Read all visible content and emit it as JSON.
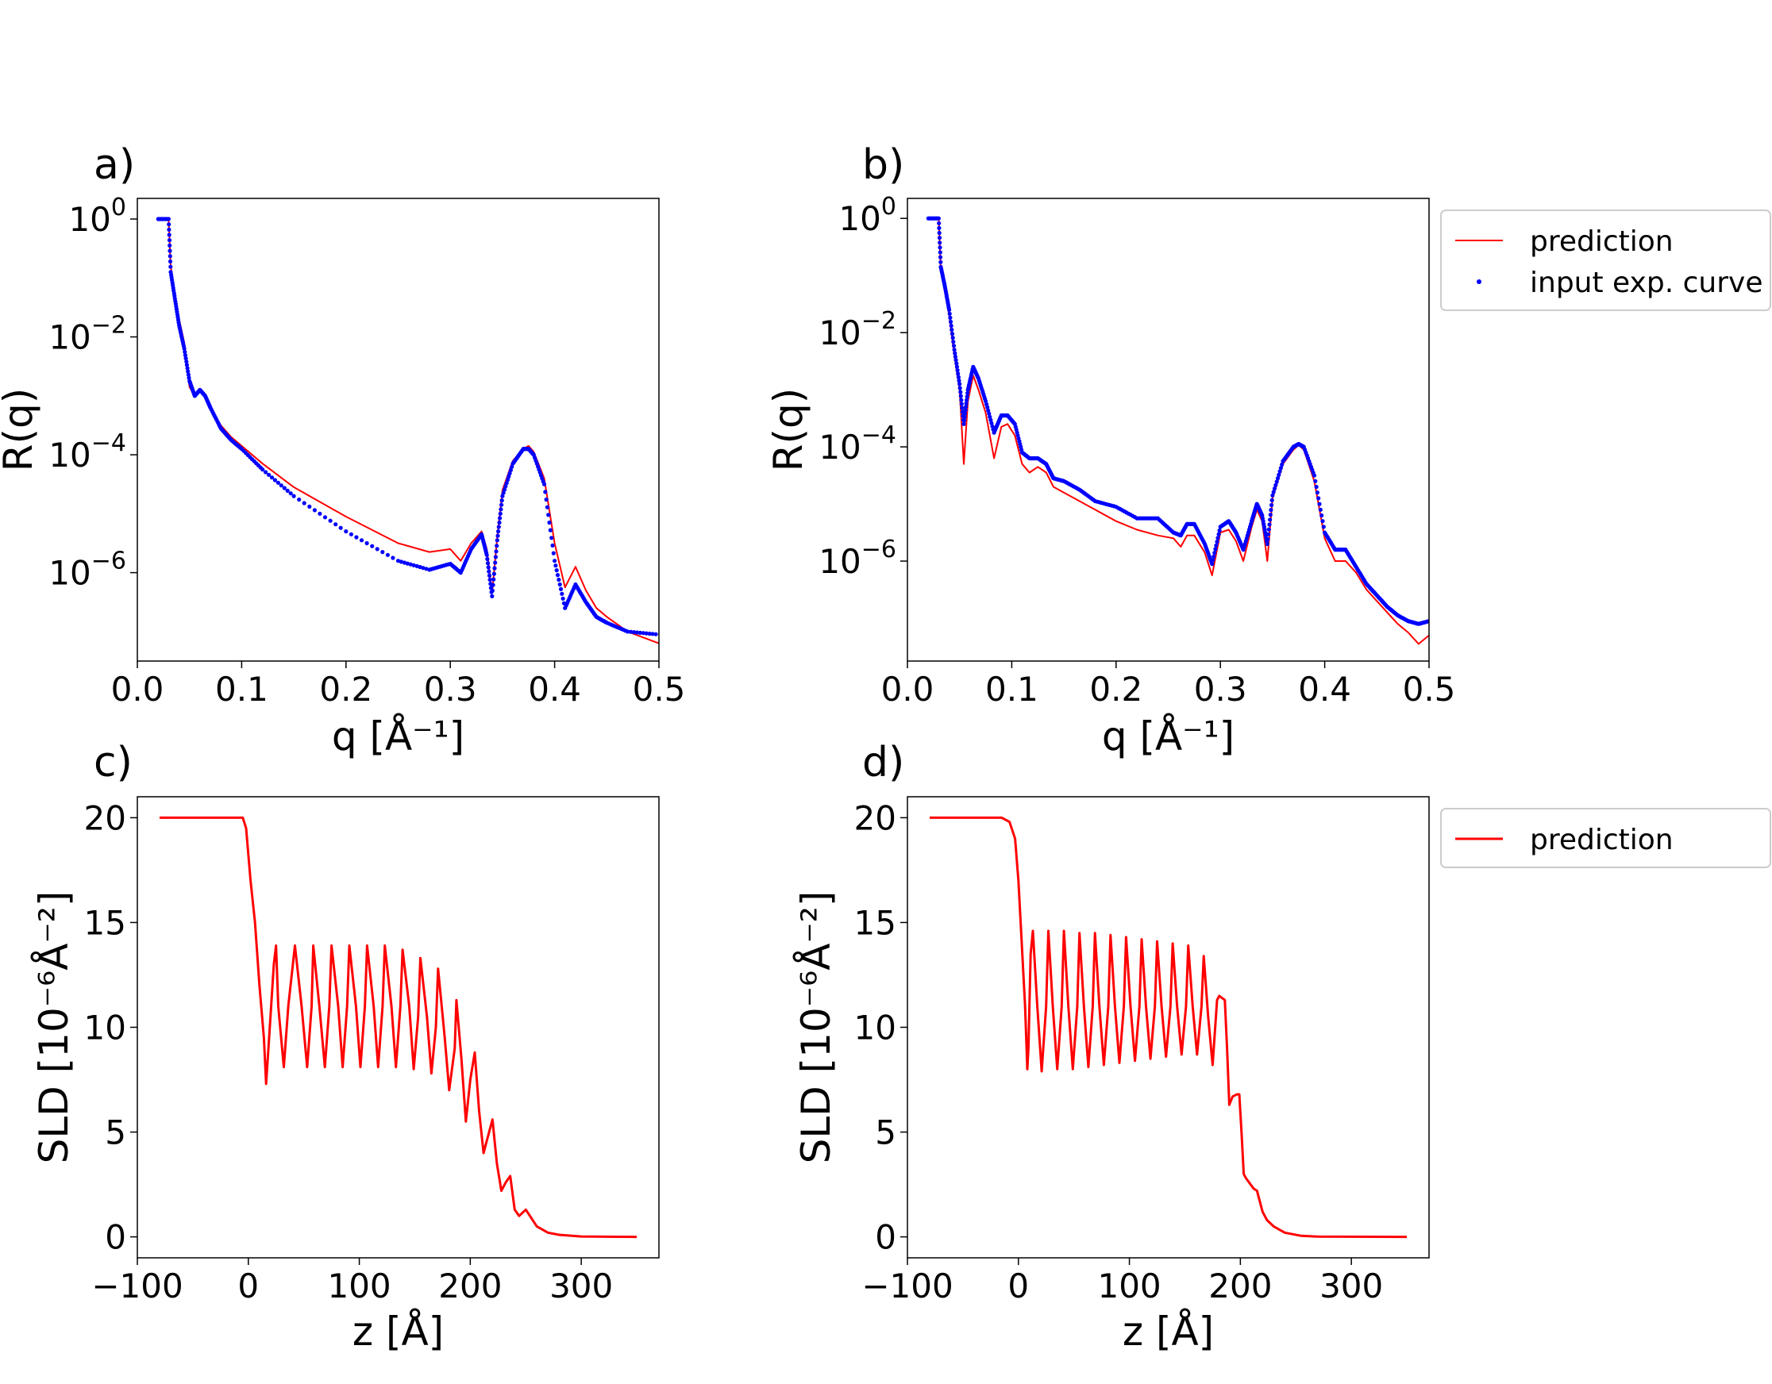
{
  "chart_data": [
    {
      "panel_label": "a)",
      "type": "line",
      "xlabel": "q [Å⁻¹]",
      "ylabel": "R(q)",
      "xlim": [
        0.0,
        0.5
      ],
      "ylim_log10": [
        -7.5,
        0.35
      ],
      "yscale": "log",
      "xticks": [
        "0.0",
        "0.1",
        "0.2",
        "0.3",
        "0.4",
        "0.5"
      ],
      "yticks": [
        {
          "base": "10",
          "exp": "0"
        },
        {
          "base": "10",
          "exp": "−2"
        },
        {
          "base": "10",
          "exp": "−4"
        },
        {
          "base": "10",
          "exp": "−6"
        }
      ],
      "series": [
        {
          "name": "prediction",
          "style": "line",
          "color": "#ff0000",
          "x": [
            0.02,
            0.03,
            0.032,
            0.036,
            0.04,
            0.045,
            0.05,
            0.055,
            0.06,
            0.065,
            0.07,
            0.08,
            0.09,
            0.1,
            0.12,
            0.15,
            0.2,
            0.25,
            0.28,
            0.3,
            0.31,
            0.32,
            0.33,
            0.335,
            0.34,
            0.345,
            0.35,
            0.36,
            0.37,
            0.375,
            0.38,
            0.39,
            0.4,
            0.41,
            0.42,
            0.43,
            0.44,
            0.45,
            0.47,
            0.5
          ],
          "log10_y": [
            0,
            0,
            -0.8,
            -1.3,
            -1.7,
            -2.1,
            -2.85,
            -3.0,
            -2.9,
            -3.0,
            -3.2,
            -3.5,
            -3.7,
            -3.85,
            -4.15,
            -4.55,
            -5.05,
            -5.5,
            -5.65,
            -5.6,
            -5.8,
            -5.5,
            -5.3,
            -5.6,
            -6.35,
            -5.4,
            -4.6,
            -4.1,
            -3.9,
            -3.85,
            -3.95,
            -4.4,
            -5.5,
            -6.25,
            -5.9,
            -6.3,
            -6.6,
            -6.75,
            -7.0,
            -7.2
          ]
        },
        {
          "name": "input exp. curve",
          "style": "points",
          "color": "#0000ff",
          "x": [
            0.02,
            0.03,
            0.032,
            0.036,
            0.04,
            0.045,
            0.05,
            0.055,
            0.06,
            0.065,
            0.07,
            0.08,
            0.09,
            0.1,
            0.12,
            0.15,
            0.2,
            0.25,
            0.28,
            0.3,
            0.31,
            0.32,
            0.33,
            0.335,
            0.34,
            0.345,
            0.35,
            0.36,
            0.37,
            0.375,
            0.38,
            0.39,
            0.4,
            0.41,
            0.42,
            0.43,
            0.44,
            0.45,
            0.47,
            0.5
          ],
          "log10_y": [
            0,
            0,
            -0.9,
            -1.35,
            -1.8,
            -2.2,
            -2.75,
            -3.0,
            -2.9,
            -3.0,
            -3.2,
            -3.55,
            -3.75,
            -3.9,
            -4.25,
            -4.7,
            -5.3,
            -5.8,
            -5.95,
            -5.85,
            -6.0,
            -5.6,
            -5.35,
            -5.7,
            -6.4,
            -5.45,
            -4.7,
            -4.15,
            -3.9,
            -3.9,
            -4.0,
            -4.5,
            -5.8,
            -6.6,
            -6.2,
            -6.5,
            -6.75,
            -6.85,
            -7.0,
            -7.05
          ]
        }
      ]
    },
    {
      "panel_label": "b)",
      "type": "line",
      "xlabel": "q [Å⁻¹]",
      "ylabel": "R(q)",
      "xlim": [
        0.0,
        0.5
      ],
      "ylim_log10": [
        -7.75,
        0.35
      ],
      "yscale": "log",
      "xticks": [
        "0.0",
        "0.1",
        "0.2",
        "0.3",
        "0.4",
        "0.5"
      ],
      "yticks": [
        {
          "base": "10",
          "exp": "0"
        },
        {
          "base": "10",
          "exp": "−2"
        },
        {
          "base": "10",
          "exp": "−4"
        },
        {
          "base": "10",
          "exp": "−6"
        }
      ],
      "legend": {
        "location": "outside-right",
        "entries": [
          "prediction",
          "input exp. curve"
        ]
      },
      "series": [
        {
          "name": "prediction",
          "style": "line",
          "color": "#ff0000",
          "x": [
            0.02,
            0.03,
            0.032,
            0.036,
            0.04,
            0.045,
            0.05,
            0.054,
            0.058,
            0.063,
            0.068,
            0.075,
            0.083,
            0.09,
            0.096,
            0.103,
            0.11,
            0.117,
            0.125,
            0.133,
            0.14,
            0.15,
            0.165,
            0.18,
            0.2,
            0.22,
            0.24,
            0.255,
            0.262,
            0.268,
            0.275,
            0.285,
            0.292,
            0.3,
            0.308,
            0.315,
            0.322,
            0.33,
            0.335,
            0.34,
            0.345,
            0.35,
            0.36,
            0.37,
            0.375,
            0.38,
            0.39,
            0.4,
            0.41,
            0.42,
            0.43,
            0.44,
            0.45,
            0.46,
            0.47,
            0.48,
            0.49,
            0.5
          ],
          "log10_y": [
            0,
            0,
            -0.9,
            -1.3,
            -1.7,
            -2.4,
            -3.0,
            -4.3,
            -3.2,
            -2.75,
            -3.0,
            -3.4,
            -4.2,
            -3.65,
            -3.6,
            -3.8,
            -4.3,
            -4.45,
            -4.35,
            -4.45,
            -4.7,
            -4.8,
            -4.95,
            -5.1,
            -5.3,
            -5.45,
            -5.55,
            -5.6,
            -5.75,
            -5.55,
            -5.55,
            -5.85,
            -6.25,
            -5.5,
            -5.45,
            -5.65,
            -6.0,
            -5.4,
            -5.1,
            -5.3,
            -6.0,
            -4.9,
            -4.3,
            -4.05,
            -3.97,
            -4.05,
            -4.6,
            -5.6,
            -6.0,
            -6.0,
            -6.2,
            -6.5,
            -6.7,
            -6.9,
            -7.1,
            -7.25,
            -7.45,
            -7.3
          ]
        },
        {
          "name": "input exp. curve",
          "style": "points",
          "color": "#0000ff",
          "x": [
            0.02,
            0.03,
            0.032,
            0.036,
            0.04,
            0.045,
            0.05,
            0.054,
            0.058,
            0.063,
            0.068,
            0.075,
            0.083,
            0.09,
            0.096,
            0.103,
            0.11,
            0.117,
            0.125,
            0.133,
            0.14,
            0.15,
            0.165,
            0.18,
            0.2,
            0.22,
            0.24,
            0.255,
            0.262,
            0.268,
            0.275,
            0.285,
            0.292,
            0.3,
            0.308,
            0.315,
            0.322,
            0.33,
            0.335,
            0.34,
            0.345,
            0.35,
            0.36,
            0.37,
            0.375,
            0.38,
            0.39,
            0.4,
            0.41,
            0.42,
            0.43,
            0.44,
            0.45,
            0.46,
            0.47,
            0.48,
            0.49,
            0.5
          ],
          "log10_y": [
            0,
            0,
            -0.85,
            -1.2,
            -1.6,
            -2.3,
            -2.9,
            -3.6,
            -3.0,
            -2.6,
            -2.8,
            -3.2,
            -3.75,
            -3.45,
            -3.45,
            -3.6,
            -4.1,
            -4.2,
            -4.2,
            -4.3,
            -4.55,
            -4.6,
            -4.75,
            -4.95,
            -5.05,
            -5.25,
            -5.25,
            -5.5,
            -5.55,
            -5.35,
            -5.35,
            -5.7,
            -6.05,
            -5.4,
            -5.3,
            -5.5,
            -5.8,
            -5.3,
            -5.0,
            -5.2,
            -5.7,
            -4.85,
            -4.25,
            -4.0,
            -3.95,
            -4.0,
            -4.5,
            -5.5,
            -5.8,
            -5.8,
            -6.1,
            -6.4,
            -6.6,
            -6.8,
            -6.95,
            -7.05,
            -7.1,
            -7.05
          ]
        }
      ]
    },
    {
      "panel_label": "c)",
      "type": "line",
      "xlabel": "z [Å]",
      "ylabel": "SLD [10⁻⁶Å⁻²]",
      "xlim": [
        -100,
        370
      ],
      "ylim": [
        -1,
        21
      ],
      "xticks": [
        -100,
        0,
        100,
        200,
        300
      ],
      "yticks": [
        0,
        5,
        10,
        15,
        20
      ],
      "series": [
        {
          "name": "prediction",
          "style": "line",
          "color": "#ff0000",
          "x": [
            -80,
            -5,
            -2,
            2,
            6,
            10,
            14,
            16,
            20,
            23,
            25,
            27,
            32,
            36,
            42,
            48,
            53,
            57,
            58.5,
            64,
            69,
            73,
            75,
            81,
            85,
            89,
            91,
            97,
            101,
            105,
            107,
            113,
            117,
            121,
            123,
            129,
            133,
            137,
            139,
            145,
            149,
            153,
            155,
            161,
            165,
            169,
            171,
            177,
            181,
            186,
            187.5,
            192,
            196,
            200,
            204,
            208,
            212,
            216,
            220,
            224,
            228,
            232,
            236,
            240,
            244,
            250,
            260,
            270,
            280,
            300,
            350
          ],
          "y": [
            20,
            20,
            19.5,
            17,
            15,
            12,
            9.5,
            7.3,
            10.5,
            13.0,
            13.9,
            11,
            8.1,
            11,
            13.9,
            11,
            8.1,
            11,
            13.9,
            11,
            8.1,
            11,
            13.9,
            11,
            8.1,
            11,
            13.9,
            11,
            8.1,
            11,
            13.9,
            11,
            8.1,
            11,
            13.9,
            11,
            8.1,
            11,
            13.7,
            11,
            8.0,
            10.5,
            13.3,
            10.5,
            7.8,
            10,
            12.8,
            9.5,
            7.0,
            9,
            11.3,
            8.5,
            5.5,
            7.5,
            8.8,
            6,
            4.0,
            4.8,
            5.6,
            3.5,
            2.2,
            2.6,
            2.9,
            1.3,
            1.0,
            1.3,
            0.5,
            0.2,
            0.1,
            0.02,
            0
          ]
        }
      ]
    },
    {
      "panel_label": "d)",
      "type": "line",
      "xlabel": "z [Å]",
      "ylabel": "SLD [10⁻⁶Å⁻²]",
      "xlim": [
        -100,
        370
      ],
      "ylim": [
        -1,
        21
      ],
      "xticks": [
        -100,
        0,
        100,
        200,
        300
      ],
      "yticks": [
        0,
        5,
        10,
        15,
        20
      ],
      "legend": {
        "location": "outside-right",
        "entries": [
          "prediction"
        ]
      },
      "series": [
        {
          "name": "prediction",
          "style": "line",
          "color": "#ff0000",
          "x": [
            -80,
            -15,
            -8,
            -3,
            0,
            3,
            6,
            8,
            9,
            11,
            13,
            17,
            21,
            25,
            27,
            31,
            35,
            39,
            41,
            45,
            49,
            53,
            55,
            59,
            63,
            67,
            69,
            73,
            77,
            81,
            83,
            87,
            91,
            95,
            97,
            101,
            105,
            109,
            111,
            115,
            119,
            123,
            125,
            129,
            133,
            137,
            139,
            143,
            147,
            151,
            153,
            157,
            161,
            165,
            167,
            171,
            175,
            179,
            181,
            186,
            188,
            190,
            193,
            197,
            199,
            201,
            203,
            205,
            212,
            215,
            220,
            224,
            230,
            240,
            255,
            270,
            350
          ],
          "y": [
            20,
            20,
            19.8,
            19,
            17,
            14,
            11,
            8,
            9,
            13.5,
            14.6,
            11,
            7.9,
            11,
            14.6,
            11,
            8.0,
            11,
            14.6,
            11,
            8.0,
            11,
            14.5,
            11,
            8.1,
            11,
            14.5,
            11,
            8.2,
            11,
            14.4,
            11,
            8.3,
            11,
            14.3,
            11,
            8.4,
            11,
            14.2,
            11,
            8.5,
            11,
            14.1,
            11,
            8.6,
            11,
            14.0,
            11,
            8.7,
            11,
            13.9,
            11,
            8.7,
            11,
            13.4,
            10.5,
            8.2,
            11.3,
            11.5,
            11.3,
            9,
            6.3,
            6.7,
            6.8,
            6.8,
            5,
            3,
            2.8,
            2.3,
            2.2,
            1.2,
            0.8,
            0.5,
            0.2,
            0.05,
            0.01,
            0
          ]
        }
      ]
    }
  ]
}
